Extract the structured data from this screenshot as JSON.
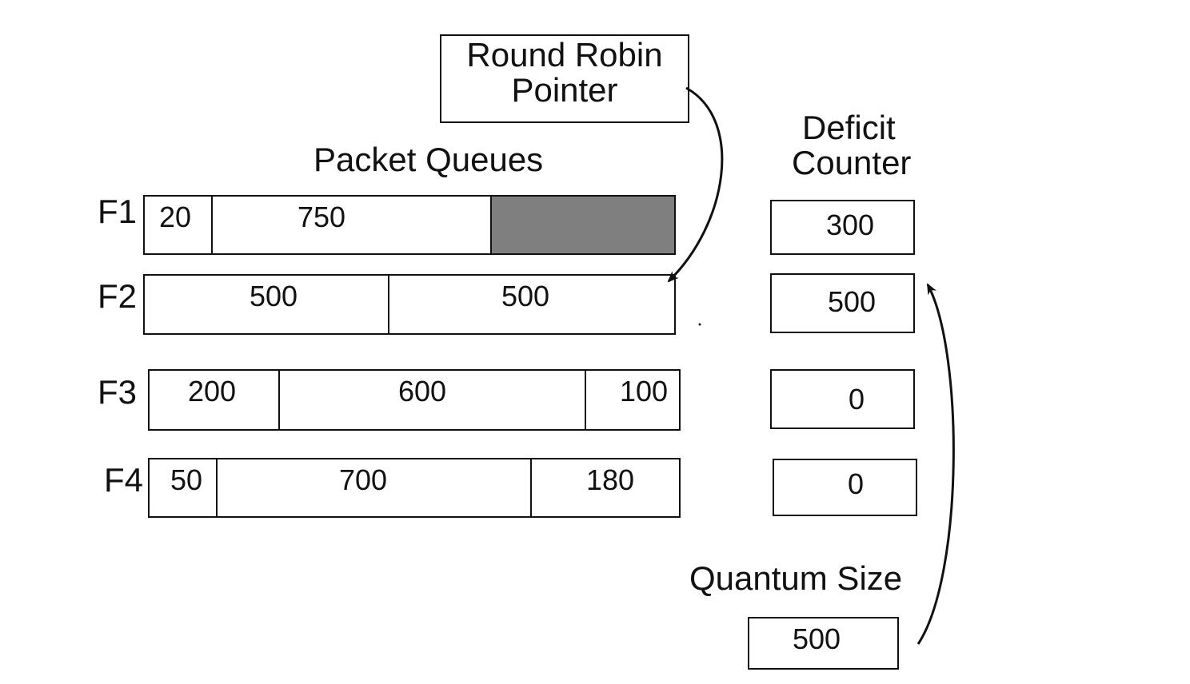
{
  "round_robin_pointer": {
    "line1": "Round Robin",
    "line2": "Pointer"
  },
  "packet_queues_title": "Packet Queues",
  "deficit_counter_title": {
    "line1": "Deficit",
    "line2": "Counter"
  },
  "quantum_size": {
    "title": "Quantum Size",
    "value": "500"
  },
  "flows": [
    {
      "label": "F1",
      "packets": [
        "20",
        "750",
        ""
      ],
      "deficit": "300"
    },
    {
      "label": "F2",
      "packets": [
        "500",
        "500"
      ],
      "deficit": "500"
    },
    {
      "label": "F3",
      "packets": [
        "200",
        "600",
        "100"
      ],
      "deficit": "0"
    },
    {
      "label": "F4",
      "packets": [
        "50",
        "700",
        "180"
      ],
      "deficit": "0"
    }
  ]
}
